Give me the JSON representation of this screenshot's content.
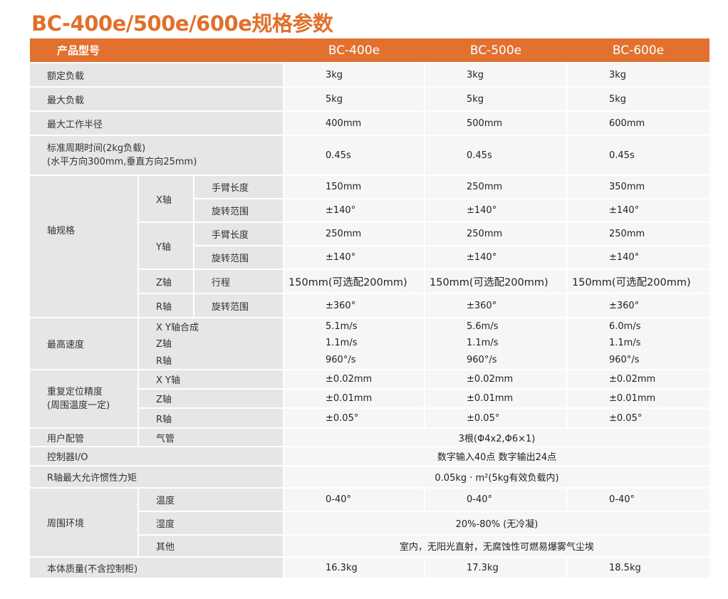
{
  "title": "BC-400e/500e/600e规格参数",
  "header": {
    "label": "产品型号",
    "models": [
      "BC-400e",
      "BC-500e",
      "BC-600e"
    ]
  },
  "rows": {
    "rated_load": {
      "label": "额定负载",
      "values": [
        "3kg",
        "3kg",
        "3kg"
      ]
    },
    "max_load": {
      "label": "最大负载",
      "values": [
        "5kg",
        "5kg",
        "5kg"
      ]
    },
    "max_radius": {
      "label": "最大工作半径",
      "values": [
        "400mm",
        "500mm",
        "600mm"
      ]
    },
    "cycle_time": {
      "label_line1": "标准周期时间(2kg负载)",
      "label_line2": "(水平方向300mm,垂直方向25mm)",
      "values": [
        "0.45s",
        "0.45s",
        "0.45s"
      ]
    },
    "axis": {
      "label": "轴规格",
      "x": {
        "label": "X轴",
        "arm": {
          "label": "手臂长度",
          "values": [
            "150mm",
            "250mm",
            "350mm"
          ]
        },
        "rot": {
          "label": "旋转范围",
          "values": [
            "±140°",
            "±140°",
            "±140°"
          ]
        }
      },
      "y": {
        "label": "Y轴",
        "arm": {
          "label": "手臂长度",
          "values": [
            "250mm",
            "250mm",
            "250mm"
          ]
        },
        "rot": {
          "label": "旋转范围",
          "values": [
            "±140°",
            "±140°",
            "±140°"
          ]
        }
      },
      "z": {
        "label": "Z轴",
        "stroke": {
          "label": "行程",
          "values": [
            "150mm(可选配200mm)",
            "150mm(可选配200mm)",
            "150mm(可选配200mm)"
          ]
        }
      },
      "r": {
        "label": "R轴",
        "rot": {
          "label": "旋转范围",
          "values": [
            "±360°",
            "±360°",
            "±360°"
          ]
        }
      }
    },
    "speed": {
      "label": "最高速度",
      "xy": {
        "label": "X Y轴合成",
        "values": [
          "5.1m/s",
          "5.6m/s",
          "6.0m/s"
        ]
      },
      "z": {
        "label": "Z轴",
        "values": [
          "1.1m/s",
          "1.1m/s",
          "1.1m/s"
        ]
      },
      "r": {
        "label": "R轴",
        "values": [
          "960°/s",
          "960°/s",
          "960°/s"
        ]
      }
    },
    "repeat": {
      "label_line1": "重复定位精度",
      "label_line2": "(周围温度一定)",
      "xy": {
        "label": "X Y轴",
        "values": [
          "±0.02mm",
          "±0.02mm",
          "±0.02mm"
        ]
      },
      "z": {
        "label": "Z轴",
        "values": [
          "±0.01mm",
          "±0.01mm",
          "±0.01mm"
        ]
      },
      "r": {
        "label": "R轴",
        "values": [
          "±0.05°",
          "±0.05°",
          "±0.05°"
        ]
      }
    },
    "piping": {
      "label": "用户配管",
      "sub": "气管",
      "value": "3根(Φ4x2,Φ6×1)"
    },
    "io": {
      "label": "控制器I/O",
      "value": "数字输入40点  数字输出24点"
    },
    "inertia": {
      "label": "R轴最大允许惯性力矩",
      "value": "0.05kg · m²(5kg有效负载内)"
    },
    "env": {
      "label": "周围环境",
      "temp": {
        "label": "温度",
        "values": [
          "0-40°",
          "0-40°",
          "0-40°"
        ]
      },
      "humidity": {
        "label": "湿度",
        "value": "20%-80% (无冷凝)"
      },
      "other": {
        "label": "其他",
        "value": "室内，无阳光直射，无腐蚀性可燃易爆雾气尘埃"
      }
    },
    "mass": {
      "label": "本体质量(不含控制柜)",
      "values": [
        "16.3kg",
        "17.3kg",
        "18.5kg"
      ]
    }
  },
  "colors": {
    "accent": "#e2712f",
    "title": "#e0702b",
    "label_bg": "#e6e6e6",
    "value_bg": "#f6f6f6"
  }
}
